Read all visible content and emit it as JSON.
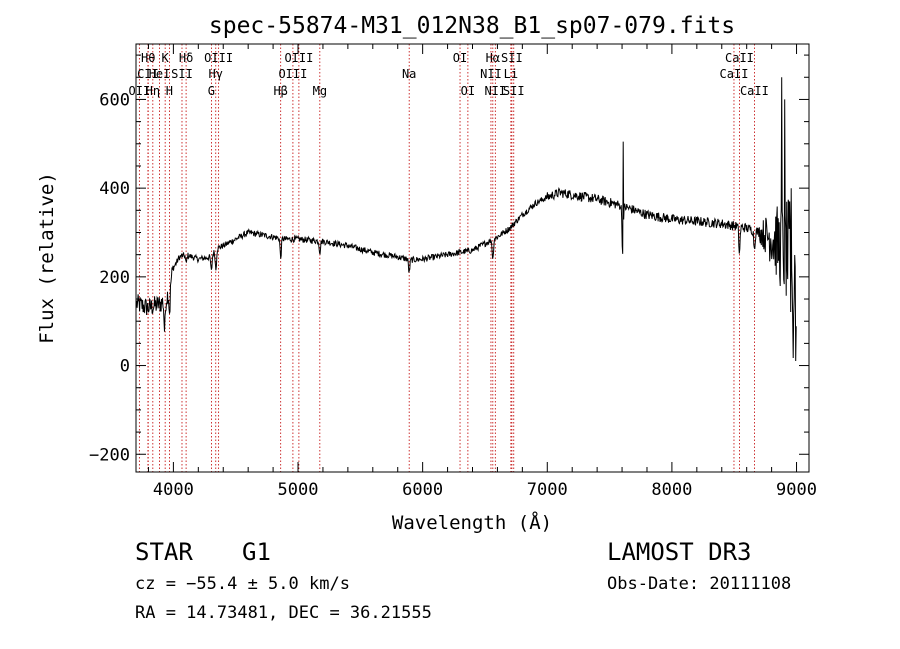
{
  "chart_data": {
    "type": "line",
    "title": "spec-55874-M31_012N38_B1_sp07-079.fits",
    "xlabel": "Wavelength (Å)",
    "ylabel": "Flux (relative)",
    "xlim": [
      3700,
      9100
    ],
    "ylim": [
      -240,
      725
    ],
    "xticks": [
      4000,
      5000,
      6000,
      7000,
      8000,
      9000
    ],
    "yticks": [
      -200,
      0,
      200,
      400,
      600
    ],
    "spectrum_knots": [
      [
        3700,
        140
      ],
      [
        3800,
        130
      ],
      [
        3900,
        140
      ],
      [
        3950,
        155
      ],
      [
        4000,
        220
      ],
      [
        4050,
        245
      ],
      [
        4100,
        250
      ],
      [
        4200,
        240
      ],
      [
        4300,
        245
      ],
      [
        4350,
        265
      ],
      [
        4400,
        270
      ],
      [
        4500,
        285
      ],
      [
        4600,
        300
      ],
      [
        4700,
        295
      ],
      [
        4800,
        290
      ],
      [
        4900,
        285
      ],
      [
        5000,
        285
      ],
      [
        5200,
        280
      ],
      [
        5400,
        270
      ],
      [
        5600,
        255
      ],
      [
        5800,
        245
      ],
      [
        5900,
        238
      ],
      [
        6000,
        240
      ],
      [
        6200,
        250
      ],
      [
        6400,
        260
      ],
      [
        6500,
        275
      ],
      [
        6600,
        290
      ],
      [
        6700,
        310
      ],
      [
        6800,
        340
      ],
      [
        6900,
        365
      ],
      [
        7000,
        380
      ],
      [
        7100,
        390
      ],
      [
        7200,
        385
      ],
      [
        7400,
        375
      ],
      [
        7600,
        360
      ],
      [
        7800,
        340
      ],
      [
        8000,
        330
      ],
      [
        8200,
        325
      ],
      [
        8400,
        320
      ],
      [
        8600,
        310
      ],
      [
        8800,
        290
      ],
      [
        8900,
        260
      ],
      [
        9000,
        230
      ]
    ],
    "absorption_features": [
      {
        "wavelength": 3930,
        "depth": 70
      },
      {
        "wavelength": 3970,
        "depth": 60
      },
      {
        "wavelength": 4102,
        "depth": 20
      },
      {
        "wavelength": 4305,
        "depth": 35
      },
      {
        "wavelength": 4341,
        "depth": 45
      },
      {
        "wavelength": 4861,
        "depth": 45
      },
      {
        "wavelength": 5175,
        "depth": 25
      },
      {
        "wavelength": 5892,
        "depth": 30
      },
      {
        "wavelength": 6563,
        "depth": 45
      },
      {
        "wavelength": 7605,
        "depth": 110
      },
      {
        "wavelength": 8542,
        "depth": 60
      },
      {
        "wavelength": 8662,
        "depth": 40
      }
    ],
    "emission_spikes": [
      {
        "wavelength": 7610,
        "value": 505
      },
      {
        "wavelength": 8880,
        "value": 650
      },
      {
        "wavelength": 8905,
        "value": 600
      }
    ],
    "line_markers": [
      {
        "label": "Hθ",
        "wavelength": 3798,
        "row": 1
      },
      {
        "label": "CII",
        "wavelength": 3796,
        "row": 2
      },
      {
        "label": "OII",
        "wavelength": 3727,
        "row": 3
      },
      {
        "label": "Hη",
        "wavelength": 3835,
        "row": 3
      },
      {
        "label": "HeI",
        "wavelength": 3889,
        "row": 2
      },
      {
        "label": "K",
        "wavelength": 3934,
        "row": 1
      },
      {
        "label": "H",
        "wavelength": 3968,
        "row": 3
      },
      {
        "label": "SII",
        "wavelength": 4069,
        "row": 2
      },
      {
        "label": "Hδ",
        "wavelength": 4102,
        "row": 1
      },
      {
        "label": "OIII",
        "wavelength": 4363,
        "row": 1
      },
      {
        "label": "Hγ",
        "wavelength": 4340,
        "row": 2
      },
      {
        "label": "G",
        "wavelength": 4305,
        "row": 3
      },
      {
        "label": "Hβ",
        "wavelength": 4861,
        "row": 3
      },
      {
        "label": "OIII",
        "wavelength": 4959,
        "row": 2
      },
      {
        "label": "OIII",
        "wavelength": 5007,
        "row": 1
      },
      {
        "label": "Mg",
        "wavelength": 5175,
        "row": 3
      },
      {
        "label": "Na",
        "wavelength": 5892,
        "row": 2
      },
      {
        "label": "OI",
        "wavelength": 6300,
        "row": 1
      },
      {
        "label": "OI",
        "wavelength": 6363,
        "row": 3
      },
      {
        "label": "Hα",
        "wavelength": 6563,
        "row": 1
      },
      {
        "label": "NII",
        "wavelength": 6548,
        "row": 2
      },
      {
        "label": "NII",
        "wavelength": 6583,
        "row": 3
      },
      {
        "label": "SII",
        "wavelength": 6716,
        "row": 1
      },
      {
        "label": "Li",
        "wavelength": 6708,
        "row": 2
      },
      {
        "label": "SII",
        "wavelength": 6731,
        "row": 3
      },
      {
        "label": "CaII",
        "wavelength": 8542,
        "row": 1
      },
      {
        "label": "CaII",
        "wavelength": 8498,
        "row": 2
      },
      {
        "label": "CaII",
        "wavelength": 8662,
        "row": 3
      }
    ]
  },
  "info": {
    "object_class": "STAR",
    "subclass": "G1",
    "survey": "LAMOST DR3",
    "cz": "cz = −55.4 ± 5.0 km/s",
    "obs_date": "Obs-Date: 20111108",
    "radec": "RA =  14.73481, DEC =  36.21555"
  }
}
